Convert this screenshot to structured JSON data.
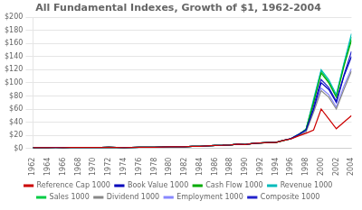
{
  "chart_data": {
    "type": "line",
    "title": "All Fundamental Indexes, Growth of $1, 1962-2004",
    "x": [
      1962,
      1963,
      1964,
      1965,
      1966,
      1967,
      1968,
      1969,
      1970,
      1971,
      1972,
      1973,
      1974,
      1975,
      1976,
      1977,
      1978,
      1979,
      1980,
      1981,
      1982,
      1983,
      1984,
      1985,
      1986,
      1987,
      1988,
      1989,
      1990,
      1991,
      1992,
      1993,
      1994,
      1995,
      1996,
      1997,
      1998,
      1999,
      2000,
      2001,
      2002,
      2003,
      2004
    ],
    "series": [
      {
        "name": "Reference Cap 1000",
        "color": "#cc0000",
        "values": [
          1,
          1.07,
          1.16,
          1.25,
          1.1,
          1.3,
          1.5,
          1.35,
          1.3,
          1.5,
          1.75,
          1.5,
          1.1,
          1.4,
          1.7,
          1.65,
          1.8,
          2.0,
          2.4,
          2.3,
          2.5,
          3.1,
          3.0,
          3.8,
          4.5,
          4.7,
          5.2,
          6.5,
          5.8,
          7.5,
          8.2,
          9.0,
          9.0,
          12.0,
          14.5,
          19.0,
          23.0,
          28.0,
          60.0,
          45.0,
          30.0,
          40.0,
          50.0
        ]
      },
      {
        "name": "Book Value 1000",
        "color": "#0000bb",
        "values": [
          1,
          1.08,
          1.17,
          1.27,
          1.12,
          1.33,
          1.52,
          1.38,
          1.32,
          1.52,
          1.78,
          1.53,
          1.12,
          1.43,
          1.74,
          1.68,
          1.83,
          2.05,
          2.45,
          2.35,
          2.55,
          3.15,
          3.05,
          3.85,
          4.55,
          4.75,
          5.25,
          6.6,
          5.9,
          7.6,
          8.3,
          9.1,
          9.1,
          12.2,
          14.8,
          21.0,
          28.0,
          60.0,
          100.0,
          90.0,
          70.0,
          110.0,
          140.0
        ]
      },
      {
        "name": "Cash Flow 1000",
        "color": "#00aa00",
        "values": [
          1,
          1.07,
          1.16,
          1.26,
          1.11,
          1.31,
          1.51,
          1.36,
          1.31,
          1.51,
          1.76,
          1.51,
          1.11,
          1.41,
          1.71,
          1.66,
          1.81,
          2.02,
          2.42,
          2.32,
          2.52,
          3.12,
          3.02,
          3.82,
          4.52,
          4.72,
          5.22,
          6.55,
          5.85,
          7.55,
          8.25,
          9.05,
          9.05,
          12.1,
          14.6,
          21.0,
          29.0,
          70.0,
          115.0,
          100.0,
          78.0,
          125.0,
          165.0
        ]
      },
      {
        "name": "Revenue 1000",
        "color": "#00bbbb",
        "values": [
          1,
          1.07,
          1.16,
          1.26,
          1.11,
          1.31,
          1.51,
          1.36,
          1.31,
          1.51,
          1.76,
          1.51,
          1.11,
          1.41,
          1.71,
          1.66,
          1.81,
          2.02,
          2.42,
          2.32,
          2.52,
          3.12,
          3.02,
          3.82,
          4.52,
          4.72,
          5.22,
          6.55,
          5.85,
          7.55,
          8.25,
          9.05,
          9.05,
          12.1,
          14.6,
          21.0,
          29.0,
          75.0,
          120.0,
          105.0,
          82.0,
          130.0,
          175.0
        ]
      },
      {
        "name": "Sales 1000",
        "color": "#00cc44",
        "values": [
          1,
          1.07,
          1.16,
          1.26,
          1.11,
          1.31,
          1.51,
          1.36,
          1.31,
          1.51,
          1.76,
          1.51,
          1.11,
          1.41,
          1.71,
          1.66,
          1.81,
          2.02,
          2.42,
          2.32,
          2.52,
          3.12,
          3.02,
          3.82,
          4.52,
          4.72,
          5.22,
          6.55,
          5.85,
          7.55,
          8.25,
          9.05,
          9.05,
          12.1,
          14.6,
          21.0,
          29.0,
          72.0,
          118.0,
          102.0,
          80.0,
          128.0,
          170.0
        ]
      },
      {
        "name": "Dividend 1000",
        "color": "#888888",
        "values": [
          1,
          1.07,
          1.16,
          1.26,
          1.11,
          1.31,
          1.51,
          1.36,
          1.31,
          1.51,
          1.76,
          1.51,
          1.11,
          1.41,
          1.71,
          1.66,
          1.81,
          2.02,
          2.42,
          2.32,
          2.52,
          3.12,
          3.02,
          3.82,
          4.52,
          4.72,
          5.22,
          6.55,
          5.85,
          7.55,
          8.25,
          9.05,
          9.05,
          12.1,
          14.6,
          19.5,
          25.0,
          55.0,
          88.0,
          78.0,
          60.0,
          90.0,
          118.0
        ]
      },
      {
        "name": "Employment 1000",
        "color": "#8888ff",
        "values": [
          1,
          1.07,
          1.16,
          1.26,
          1.11,
          1.31,
          1.51,
          1.36,
          1.31,
          1.51,
          1.76,
          1.51,
          1.11,
          1.41,
          1.71,
          1.66,
          1.81,
          2.02,
          2.42,
          2.32,
          2.52,
          3.12,
          3.02,
          3.82,
          4.52,
          4.72,
          5.22,
          6.55,
          5.85,
          7.55,
          8.25,
          9.05,
          9.05,
          12.1,
          14.6,
          20.0,
          27.0,
          58.0,
          92.0,
          82.0,
          63.0,
          95.0,
          122.0
        ]
      },
      {
        "name": "Composite 1000",
        "color": "#2222cc",
        "values": [
          1,
          1.08,
          1.17,
          1.27,
          1.12,
          1.33,
          1.53,
          1.38,
          1.33,
          1.53,
          1.79,
          1.54,
          1.13,
          1.44,
          1.75,
          1.69,
          1.84,
          2.06,
          2.46,
          2.36,
          2.57,
          3.17,
          3.07,
          3.87,
          4.57,
          4.77,
          5.28,
          6.62,
          5.92,
          7.62,
          8.32,
          9.12,
          9.12,
          12.25,
          14.85,
          21.0,
          28.5,
          65.0,
          105.0,
          93.0,
          72.0,
          112.0,
          148.0
        ]
      }
    ],
    "xlim": [
      1962,
      2004
    ],
    "xticks": [
      1962,
      1964,
      1966,
      1968,
      1970,
      1972,
      1974,
      1976,
      1978,
      1980,
      1982,
      1984,
      1986,
      1988,
      1990,
      1992,
      1994,
      1996,
      1998,
      2000,
      2002,
      2004
    ],
    "ylim": [
      0,
      200
    ],
    "yticks": [
      {
        "value": 0,
        "label": "$0"
      },
      {
        "value": 20,
        "label": "$20"
      },
      {
        "value": 40,
        "label": "$40"
      },
      {
        "value": 60,
        "label": "$60"
      },
      {
        "value": 80,
        "label": "$80"
      },
      {
        "value": 100,
        "label": "$100"
      },
      {
        "value": 120,
        "label": "$120"
      },
      {
        "value": 140,
        "label": "$140"
      },
      {
        "value": 160,
        "label": "$160"
      },
      {
        "value": 180,
        "label": "$180"
      },
      {
        "value": 200,
        "label": "$200"
      }
    ],
    "grid": "y",
    "legend": "bottom"
  }
}
